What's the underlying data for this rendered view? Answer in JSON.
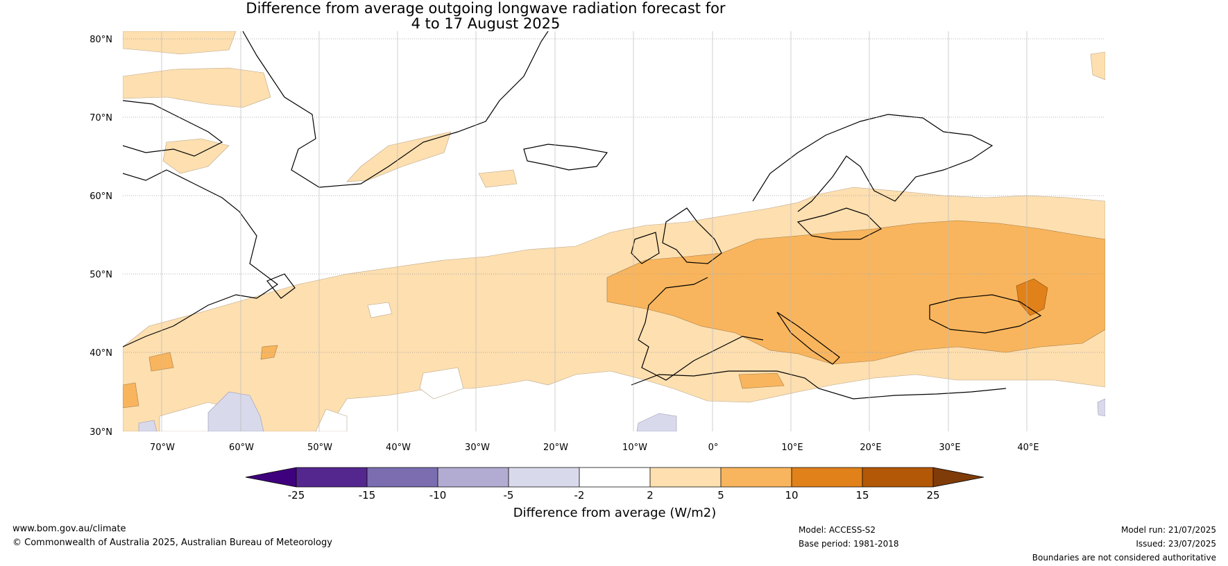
{
  "title": {
    "line1": "Difference from average outgoing longwave radiation forecast for",
    "line2": "4 to 17 August 2025"
  },
  "map": {
    "lat_labels": [
      "80°N",
      "70°N",
      "60°N",
      "50°N",
      "40°N",
      "30°N"
    ],
    "lon_labels": [
      "70°W",
      "60°W",
      "50°W",
      "40°W",
      "30°W",
      "20°W",
      "10°W",
      "0°",
      "10°E",
      "20°E",
      "30°E",
      "40°E"
    ],
    "extent": {
      "lon_min": -75,
      "lon_max": 50,
      "lat_min": 30,
      "lat_max": 81
    }
  },
  "colorbar": {
    "ticks": [
      "-25",
      "-15",
      "-10",
      "-5",
      "-2",
      "2",
      "5",
      "10",
      "15",
      "25"
    ],
    "colors": [
      "#3f007d",
      "#54278f",
      "#7b6db0",
      "#b2abd2",
      "#d8d9eb",
      "#ffffff",
      "#fddfb0",
      "#f9b55d",
      "#e0811a",
      "#b35806",
      "#7f3b08"
    ],
    "label": "Difference from average (W/m2)"
  },
  "footer": {
    "website": "www.bom.gov.au/climate",
    "copyright": "© Commonwealth of Australia 2025, Australian Bureau of Meteorology",
    "model": "Model: ACCESS-S2",
    "base_period": "Base period: 1981-2018",
    "model_run": "Model run: 21/07/2025",
    "issued": "Issued: 23/07/2025",
    "disclaimer": "Boundaries are not considered authoritative"
  }
}
